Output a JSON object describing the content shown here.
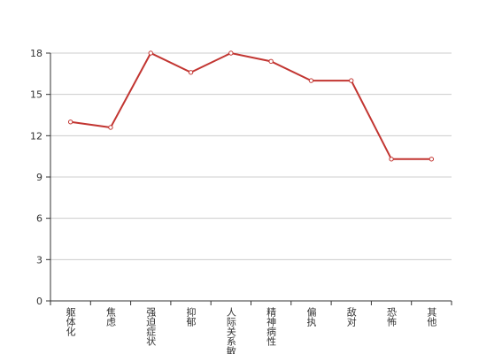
{
  "chart_data": {
    "type": "line",
    "categories": [
      "躯体化",
      "焦虑",
      "强迫症状",
      "抑郁",
      "人际关系敏感",
      "精神病性",
      "偏执",
      "敌对",
      "恐怖",
      "其他"
    ],
    "series": [
      {
        "color": "#c23531",
        "values": [
          13,
          12.6,
          18,
          16.6,
          18,
          17.4,
          16,
          16,
          10.3,
          10.3
        ]
      }
    ],
    "ylim": [
      0,
      18
    ],
    "yticks": [
      0,
      3,
      6,
      9,
      12,
      15,
      18
    ],
    "grid": true
  }
}
